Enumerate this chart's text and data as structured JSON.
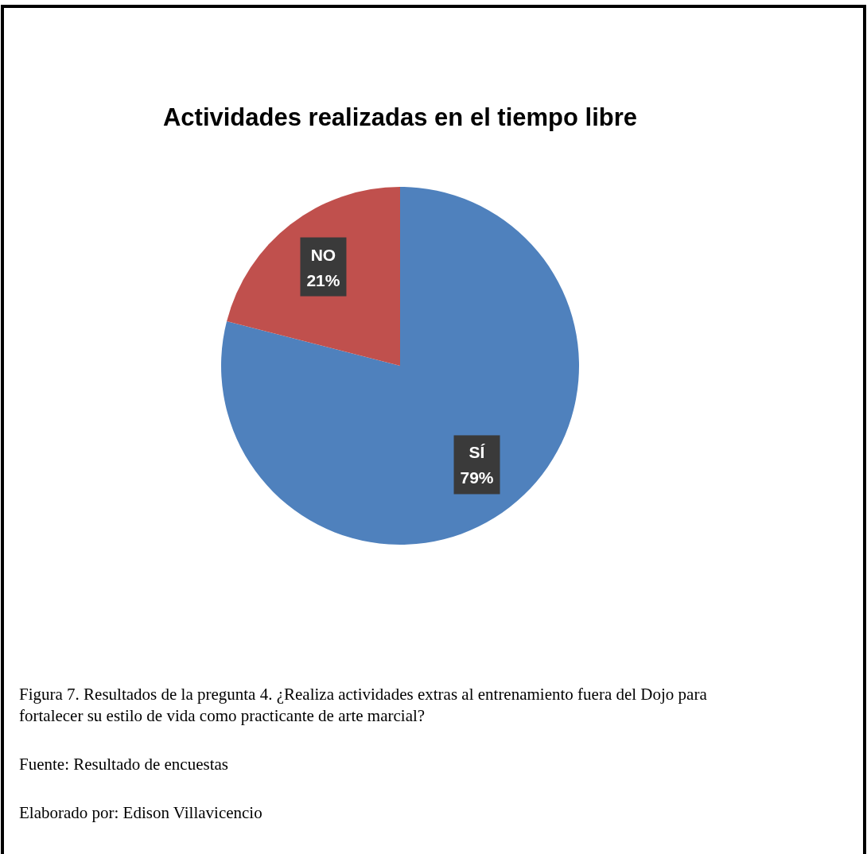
{
  "chart_data": {
    "type": "pie",
    "title": "Actividades realizadas en el tiempo libre",
    "categories": [
      "SÍ",
      "NO"
    ],
    "values": [
      79,
      21
    ],
    "colors": [
      "#4f81bd",
      "#c0504d"
    ],
    "value_labels": [
      "79%",
      "21%"
    ],
    "annotations": [
      "Figura 7. Resultados de la pregunta 4. ¿Realiza actividades extras al entrenamiento fuera del Dojo para fortalecer su estilo de vida como practicante de arte marcial?",
      "Fuente: Resultado de encuestas",
      "Elaborado por: Edison Villavicencio"
    ]
  }
}
